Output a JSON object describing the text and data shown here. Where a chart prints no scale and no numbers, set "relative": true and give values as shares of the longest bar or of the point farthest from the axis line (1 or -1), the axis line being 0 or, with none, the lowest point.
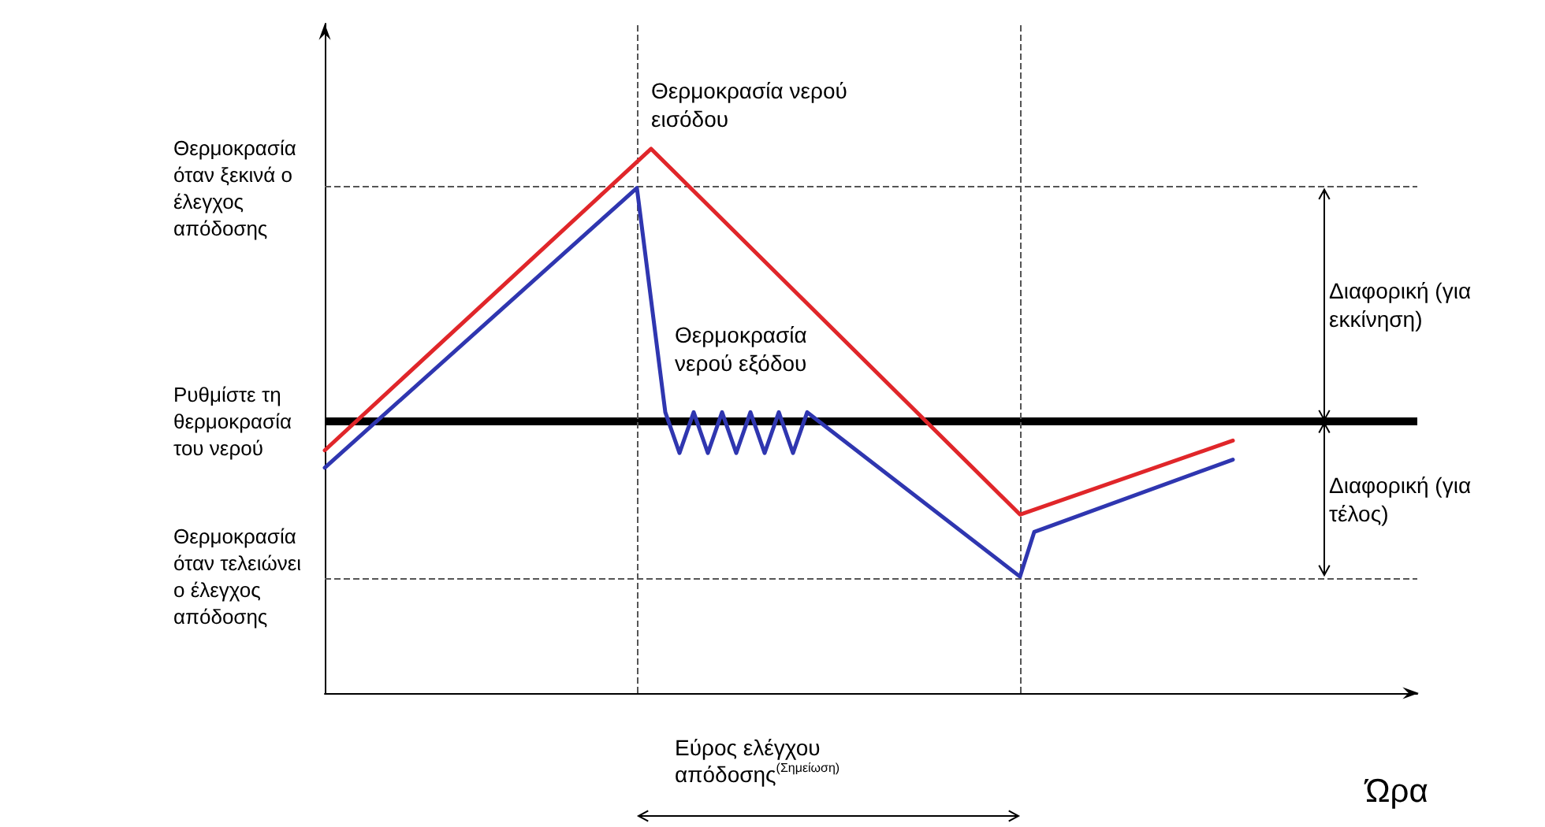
{
  "chart_data": {
    "type": "line",
    "relative": true,
    "xlabel": "Ώρα",
    "categories": [
      null,
      null,
      null,
      null,
      null,
      null,
      null,
      null,
      null,
      null,
      null,
      null,
      null,
      null,
      null,
      null,
      null,
      null,
      null,
      null,
      null,
      null,
      null,
      null,
      null,
      null,
      null,
      null,
      null,
      null,
      null,
      null,
      null,
      null,
      null,
      null,
      null,
      null,
      null,
      null,
      null,
      null,
      null,
      null,
      null,
      null,
      null,
      null,
      null,
      null,
      null,
      null,
      null,
      null,
      null,
      null,
      null,
      null,
      null,
      null,
      null,
      null,
      null,
      null,
      null,
      null,
      null,
      null,
      null,
      null,
      null,
      null,
      null,
      null,
      null,
      null,
      null,
      null
    ],
    "series": [
      {
        "name": "Θερμοκρασία νερού εισόδου",
        "color": "#e0262a",
        "values": [
          0.446,
          null,
          null,
          null,
          null,
          null,
          null,
          null,
          null,
          null,
          null,
          null,
          null,
          null,
          null,
          null,
          null,
          null,
          null,
          null,
          null,
          null,
          null,
          1,
          null,
          null,
          null,
          null,
          null,
          null,
          null,
          null,
          null,
          null,
          null,
          null,
          null,
          null,
          null,
          null,
          null,
          null,
          null,
          null,
          null,
          null,
          null,
          null,
          null,
          0.328,
          null,
          null,
          null,
          null,
          null,
          null,
          null,
          null,
          null,
          null,
          null,
          null,
          null,
          null,
          0.464,
          null,
          null,
          null,
          null,
          null,
          null,
          null,
          null,
          null,
          null,
          null,
          null,
          null
        ]
      },
      {
        "name": "Θερμοκρασία νερού εξόδου",
        "color": "#2f36b0",
        "values": [
          0.414,
          null,
          null,
          null,
          null,
          null,
          null,
          null,
          null,
          null,
          null,
          null,
          null,
          null,
          null,
          null,
          null,
          null,
          null,
          null,
          null,
          null,
          0.928,
          null,
          0.516,
          0.441,
          0.516,
          0.441,
          0.516,
          0.441,
          0.516,
          0.441,
          0.516,
          0.441,
          0.516,
          null,
          null,
          null,
          null,
          null,
          null,
          null,
          null,
          null,
          null,
          null,
          null,
          null,
          null,
          0.214,
          0.296,
          null,
          null,
          null,
          null,
          null,
          null,
          null,
          null,
          null,
          null,
          null,
          null,
          null,
          0.429,
          null,
          null,
          null,
          null,
          null,
          null,
          null,
          null,
          null,
          null,
          null,
          null,
          null
        ]
      }
    ],
    "ref_lines": [
      {
        "axis": "y",
        "value": 0.928,
        "label": "Θερμοκρασία όταν ξεκινά ο έλεγχος απόδοσης",
        "color": "#555555",
        "line_style": "dashed"
      },
      {
        "axis": "y",
        "value": 0.499,
        "label": "Ρυθμίστε τη θερμοκρασία του νερού",
        "color": "#000000",
        "line_style": "solid"
      },
      {
        "axis": "y",
        "value": 0.214,
        "label": "Θερμοκρασία όταν τελειώνει ο έλεγχος απόδοσης",
        "color": "#555555",
        "line_style": "dashed"
      }
    ],
    "annotations": [
      "Διαφορική (για εκκίνηση)",
      "Διαφορική (για τέλος)",
      "Εύρος ελέγχου απόδοσης$^{(Σημείωση)}$"
    ],
    "grid": false,
    "legend": false,
    "marker": "none",
    "line_style": "solid",
    "tick_labels": false
  }
}
